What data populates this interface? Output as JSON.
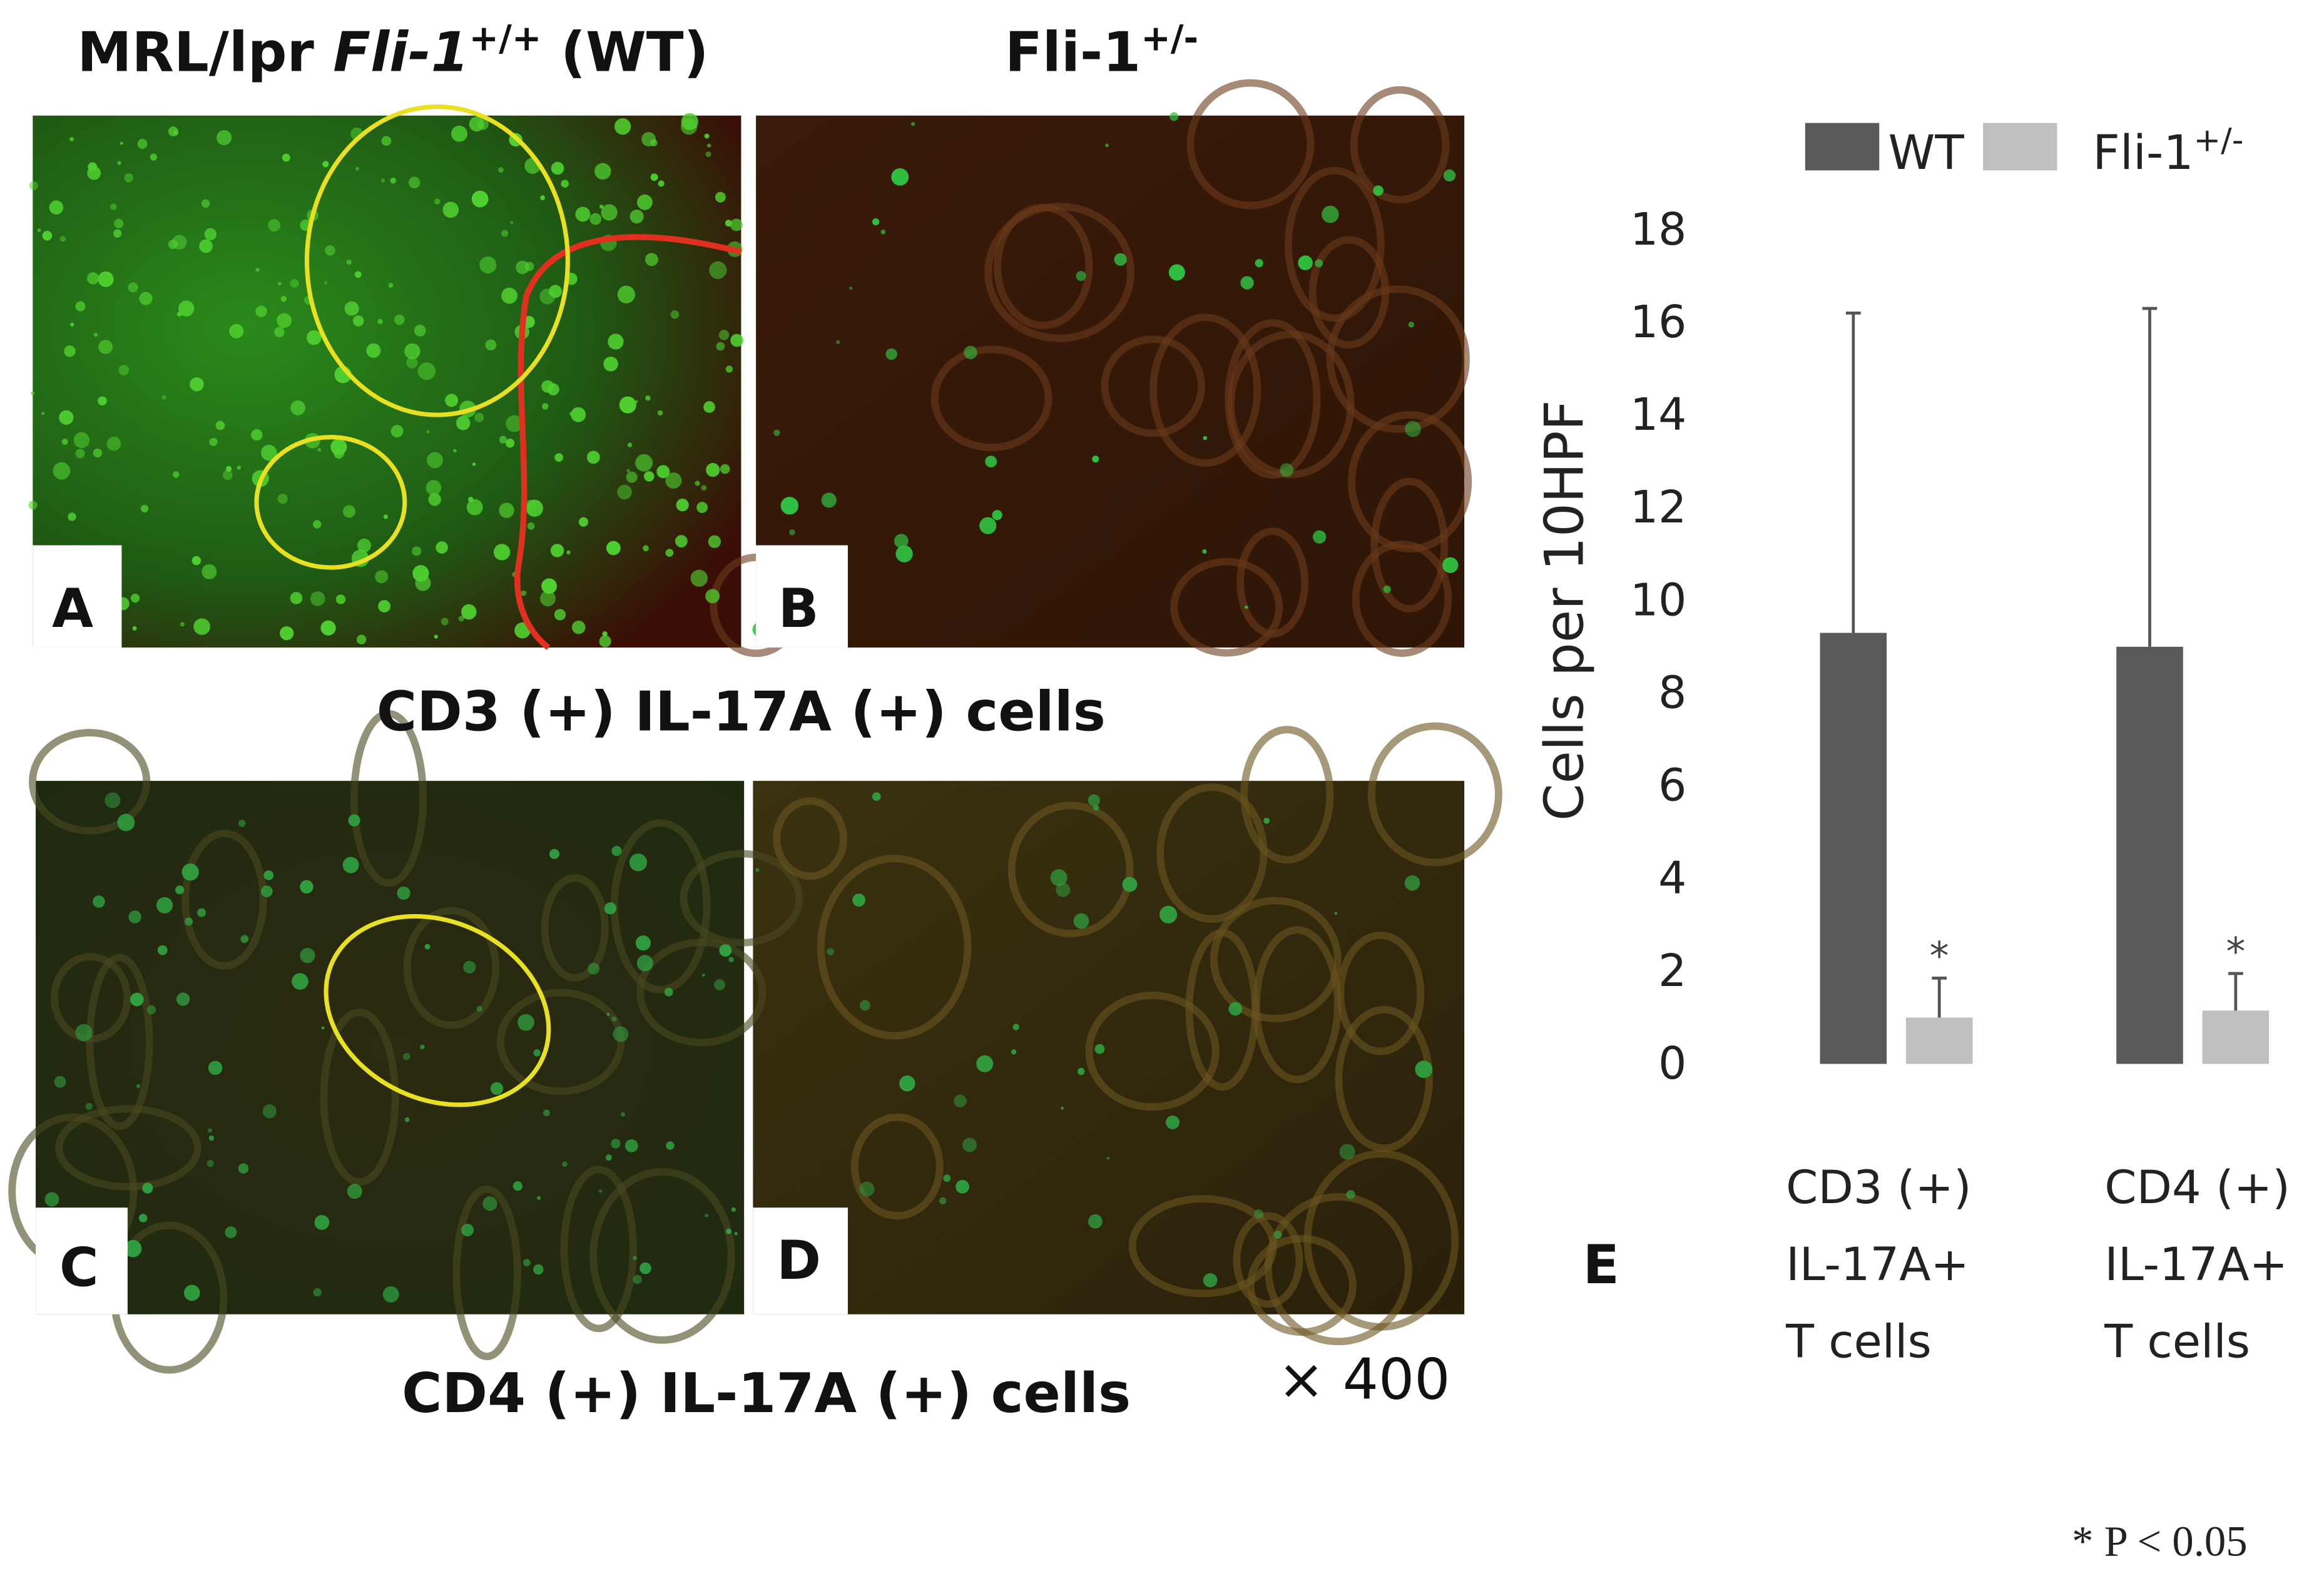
{
  "headers": {
    "wt": {
      "prefix": "MRL/lpr ",
      "gene": "Fli-1",
      "sup": "+/+",
      "suffix": " (WT)"
    },
    "het": {
      "gene": "Fli-1",
      "sup": "+/-"
    }
  },
  "panels": {
    "a": "A",
    "b": "B",
    "c": "C",
    "d": "D",
    "e": "E"
  },
  "captions": {
    "cd3": "CD3 (+) IL-17A (+) cells",
    "cd4": "CD4 (+) IL-17A (+) cells",
    "magnification": "× 400"
  },
  "footnote": "* P < 0.05",
  "chart_data": {
    "type": "bar",
    "y_label": "Cells per 10HPF",
    "categories": [
      [
        "CD3 (+)",
        "IL-17A+",
        "T cells"
      ],
      [
        "CD4 (+)",
        "IL-17A+",
        "T cells"
      ]
    ],
    "series": [
      {
        "name": "WT",
        "color": "#595959",
        "values": [
          9.3,
          9.0
        ],
        "errors": [
          6.9,
          7.3
        ]
      },
      {
        "name": "Fli-1",
        "name_sup": "+/-",
        "color": "#bfbfbf",
        "values": [
          1.0,
          1.15
        ],
        "errors": [
          0.85,
          0.8
        ],
        "markers": [
          "*",
          "*"
        ]
      }
    ],
    "ylim": [
      0,
      18
    ],
    "yticks": [
      0,
      2,
      4,
      6,
      8,
      10,
      12,
      14,
      16,
      18
    ],
    "grid": false,
    "legend": "top"
  }
}
